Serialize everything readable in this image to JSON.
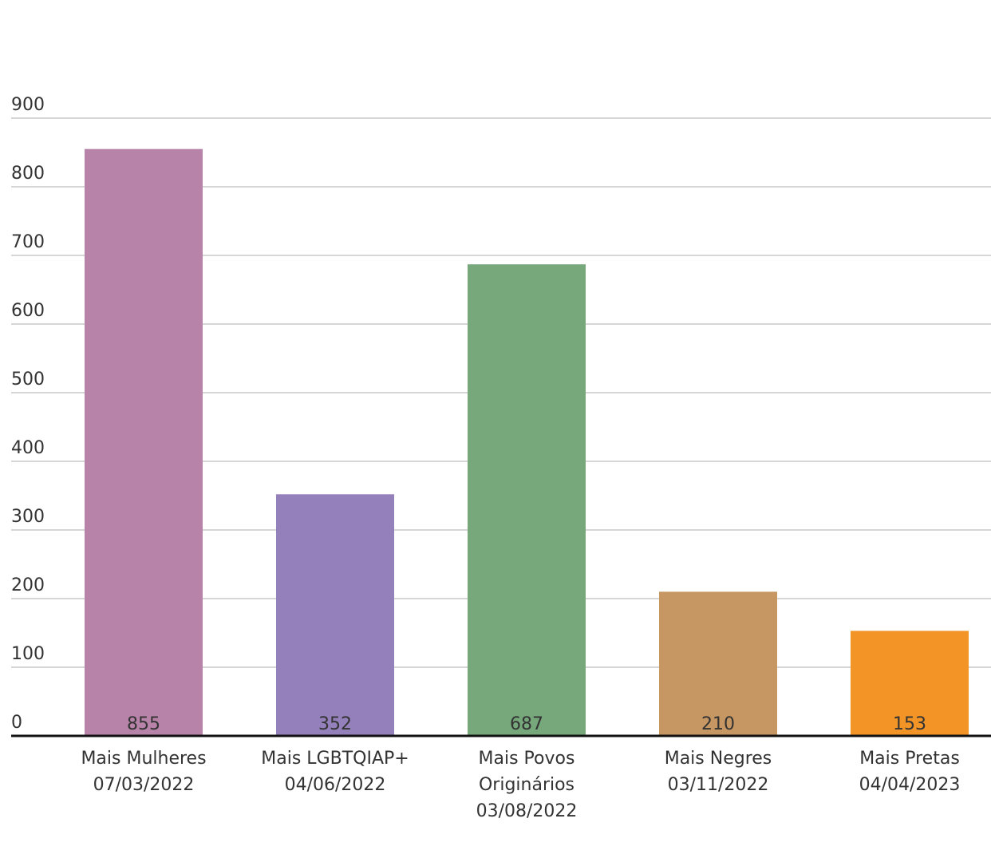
{
  "chart_data": {
    "type": "bar",
    "categories": [
      [
        "Mais Mulheres",
        "07/03/2022"
      ],
      [
        "Mais LGBTQIAP+",
        "04/06/2022"
      ],
      [
        "Mais Povos",
        "Originários",
        "03/08/2022"
      ],
      [
        "Mais Negres",
        "03/11/2022"
      ],
      [
        "Mais Pretas",
        "04/04/2023"
      ]
    ],
    "values": [
      855,
      352,
      687,
      210,
      153
    ],
    "colors": [
      "#b883a8",
      "#9480bb",
      "#76a87c",
      "#c79763",
      "#f39427"
    ],
    "yticks": [
      0,
      100,
      200,
      300,
      400,
      500,
      600,
      700,
      800,
      900
    ],
    "ylim": [
      0,
      900
    ],
    "grid": true,
    "data_labels_position": "inside-bottom"
  }
}
